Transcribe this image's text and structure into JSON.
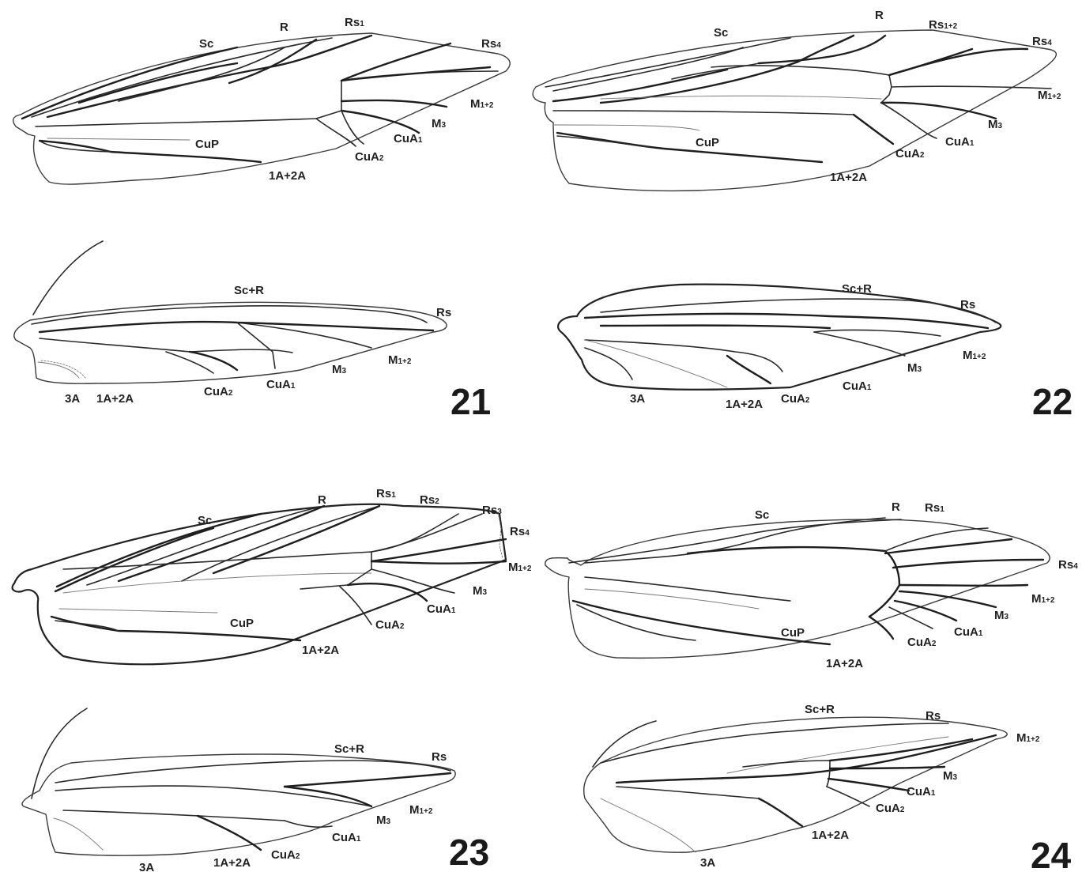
{
  "figures": [
    {
      "number": "21",
      "forewing_labels": [
        "Sc",
        "R",
        "Rs1",
        "Rs4",
        "M1+2",
        "M3",
        "CuA1",
        "CuA2",
        "CuP",
        "1A+2A"
      ],
      "hindwing_labels": [
        "Sc+R",
        "Rs",
        "M1+2",
        "M3",
        "CuA1",
        "CuA2",
        "1A+2A",
        "3A"
      ]
    },
    {
      "number": "22",
      "forewing_labels": [
        "Sc",
        "R",
        "Rs1+2",
        "Rs4",
        "M1+2",
        "M3",
        "CuA1",
        "CuA2",
        "CuP",
        "1A+2A"
      ],
      "hindwing_labels": [
        "Sc+R",
        "Rs",
        "M1+2",
        "M3",
        "CuA1",
        "CuA2",
        "1A+2A",
        "3A"
      ]
    },
    {
      "number": "23",
      "forewing_labels": [
        "Sc",
        "R",
        "Rs1",
        "Rs2",
        "Rs3",
        "Rs4",
        "M1+2",
        "M3",
        "CuA1",
        "CuA2",
        "CuP",
        "1A+2A"
      ],
      "hindwing_labels": [
        "Sc+R",
        "Rs",
        "M1+2",
        "M3",
        "CuA1",
        "CuA2",
        "1A+2A",
        "3A"
      ]
    },
    {
      "number": "24",
      "forewing_labels": [
        "Sc",
        "R",
        "Rs1",
        "Rs4",
        "M1+2",
        "M3",
        "CuA1",
        "CuA2",
        "CuP",
        "1A+2A"
      ],
      "hindwing_labels": [
        "Sc+R",
        "Rs",
        "M1+2",
        "M3",
        "CuA1",
        "CuA2",
        "1A+2A",
        "3A"
      ]
    }
  ]
}
